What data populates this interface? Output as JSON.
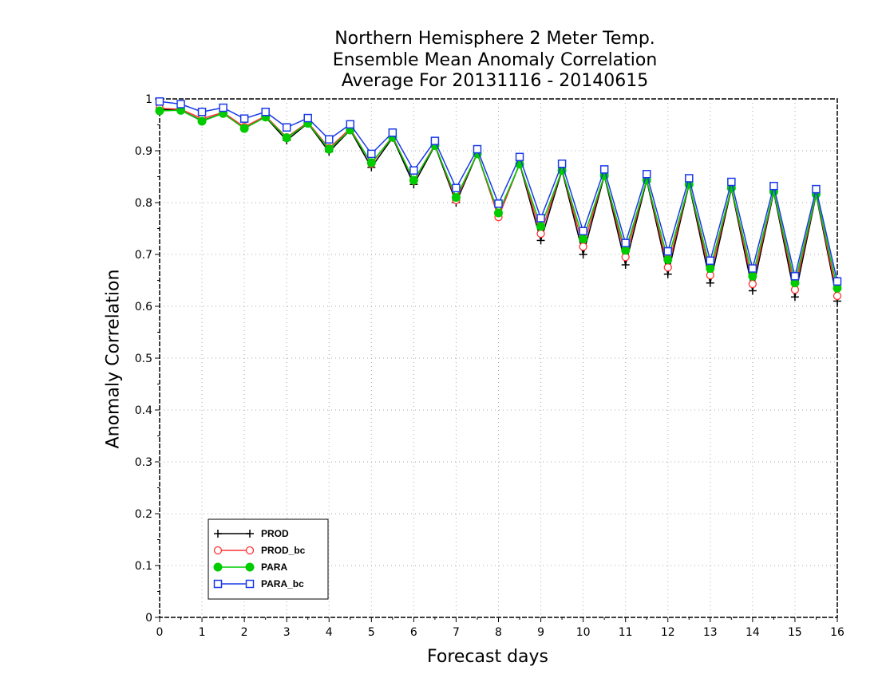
{
  "chart_data": {
    "type": "line",
    "title": [
      "Northern Hemisphere 2 Meter Temp.",
      "Ensemble Mean Anomaly Correlation",
      "Average For 20131116 - 20140615"
    ],
    "xlabel": "Forecast days",
    "ylabel": "Anomaly Correlation",
    "xlim": [
      0,
      16
    ],
    "ylim": [
      0,
      1
    ],
    "xticks": [
      "0",
      "1",
      "2",
      "3",
      "4",
      "5",
      "6",
      "7",
      "8",
      "9",
      "10",
      "11",
      "12",
      "13",
      "14",
      "15",
      "16"
    ],
    "yticks": [
      "0",
      "0.1",
      "0.2",
      "0.3",
      "0.4",
      "0.5",
      "0.6",
      "0.7",
      "0.8",
      "0.9",
      "1"
    ],
    "grid": true,
    "legend_position": "bottom-left",
    "x": [
      0,
      0.5,
      1,
      1.5,
      2,
      2.5,
      3,
      3.5,
      4,
      4.5,
      5,
      5.5,
      6,
      6.5,
      7,
      7.5,
      8,
      8.5,
      9,
      9.5,
      10,
      10.5,
      11,
      11.5,
      12,
      12.5,
      13,
      13.5,
      14,
      14.5,
      15,
      15.5,
      16
    ],
    "series": [
      {
        "name": "PROD",
        "color": "#000000",
        "marker": "plus",
        "values": [
          0.98,
          0.978,
          0.958,
          0.972,
          0.943,
          0.965,
          0.92,
          0.953,
          0.898,
          0.94,
          0.868,
          0.925,
          0.835,
          0.91,
          0.8,
          0.895,
          0.772,
          0.875,
          0.727,
          0.862,
          0.7,
          0.852,
          0.68,
          0.843,
          0.662,
          0.835,
          0.645,
          0.827,
          0.63,
          0.82,
          0.618,
          0.815,
          0.61
        ]
      },
      {
        "name": "PROD_bc",
        "color": "#ff3333",
        "marker": "open-circle",
        "values": [
          0.982,
          0.98,
          0.962,
          0.974,
          0.946,
          0.967,
          0.926,
          0.955,
          0.905,
          0.943,
          0.875,
          0.928,
          0.842,
          0.912,
          0.805,
          0.896,
          0.772,
          0.876,
          0.74,
          0.864,
          0.715,
          0.854,
          0.695,
          0.845,
          0.675,
          0.837,
          0.66,
          0.829,
          0.643,
          0.822,
          0.632,
          0.817,
          0.62
        ]
      },
      {
        "name": "PARA",
        "color": "#00cc00",
        "marker": "filled-circle",
        "values": [
          0.977,
          0.978,
          0.957,
          0.972,
          0.943,
          0.965,
          0.925,
          0.953,
          0.903,
          0.94,
          0.877,
          0.926,
          0.843,
          0.91,
          0.81,
          0.894,
          0.78,
          0.874,
          0.754,
          0.862,
          0.73,
          0.852,
          0.708,
          0.843,
          0.69,
          0.835,
          0.673,
          0.828,
          0.658,
          0.821,
          0.645,
          0.816,
          0.635
        ]
      },
      {
        "name": "PARA_bc",
        "color": "#1a3ae8",
        "marker": "open-square",
        "values": [
          0.995,
          0.99,
          0.975,
          0.983,
          0.962,
          0.975,
          0.945,
          0.963,
          0.922,
          0.951,
          0.894,
          0.935,
          0.862,
          0.919,
          0.828,
          0.903,
          0.798,
          0.888,
          0.77,
          0.875,
          0.745,
          0.864,
          0.722,
          0.855,
          0.706,
          0.847,
          0.688,
          0.84,
          0.673,
          0.832,
          0.658,
          0.826,
          0.648
        ]
      }
    ]
  }
}
